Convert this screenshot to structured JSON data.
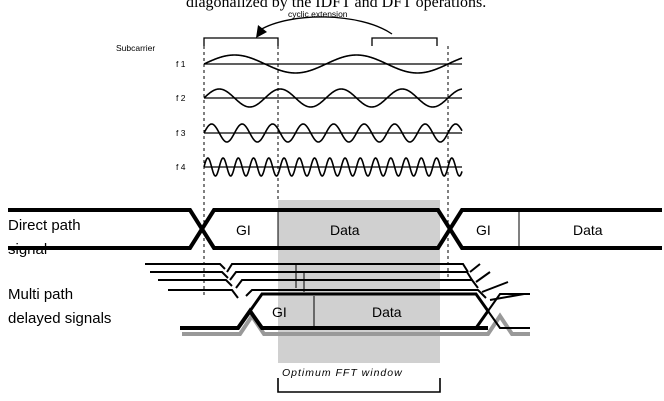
{
  "caption_fragment": "diagonalized by the IDFT and DFT operations.",
  "cyclic_extension_label": "cyclic extension",
  "subcarrier_label": "Subcarrier",
  "subcarriers": [
    {
      "label": "f 1",
      "cycles": 2
    },
    {
      "label": "f 2",
      "cycles": 4
    },
    {
      "label": "f 3",
      "cycles": 8
    },
    {
      "label": "f 4",
      "cycles": 16
    }
  ],
  "direct_path": {
    "label_line1": "Direct path",
    "label_line2": "signal",
    "segments": [
      "GI",
      "Data",
      "GI",
      "Data"
    ]
  },
  "multipath": {
    "label_line1": "Multi path",
    "label_line2": "delayed signals",
    "segments": [
      "GI",
      "Data"
    ]
  },
  "fft_window_label": "Optimum FFT window",
  "colors": {
    "line": "#000000",
    "shade": "#d0d0d0",
    "shadow": "#999999"
  }
}
